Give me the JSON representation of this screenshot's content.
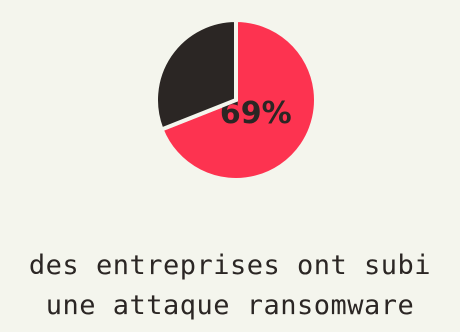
{
  "chart_data": {
    "type": "pie",
    "slices": [
      {
        "label": "69%",
        "value": 69,
        "color": "#fd3350"
      },
      {
        "label": "",
        "value": 31,
        "color": "#2b2624"
      }
    ],
    "title": "",
    "xlabel": "",
    "ylabel": ""
  },
  "caption": {
    "line1": "des entreprises ont subi",
    "line2": "une attaque ransomware"
  },
  "colors": {
    "background": "#f4f5ed",
    "accent": "#fd3350",
    "dark": "#2b2624"
  }
}
